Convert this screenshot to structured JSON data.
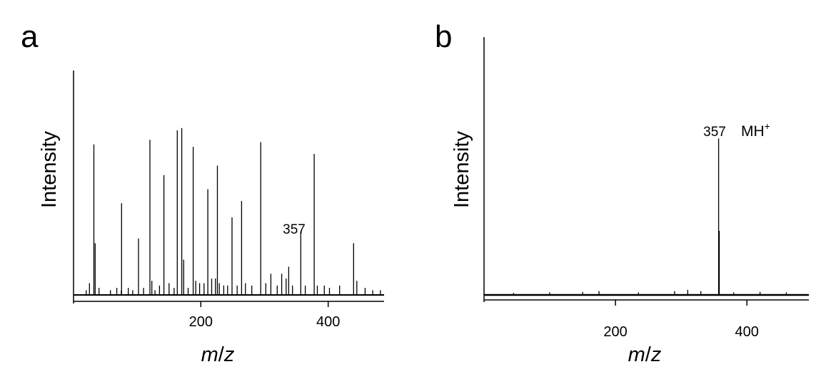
{
  "chart_data": [
    {
      "type": "bar",
      "panel_label": "a",
      "ylabel": "Intensity",
      "xlabel_italic_1": "m",
      "xlabel_sep": "/",
      "xlabel_italic_2": "z",
      "xlim": [
        0,
        500
      ],
      "ylim": [
        0,
        1
      ],
      "xticks": [
        200,
        400
      ],
      "xtick_labels": [
        "200",
        "400"
      ],
      "grid": false,
      "annotations": [
        {
          "x": 357,
          "text": "357"
        }
      ],
      "peaks": [
        [
          20,
          0.02
        ],
        [
          25,
          0.05
        ],
        [
          32,
          0.64
        ],
        [
          34,
          0.22
        ],
        [
          40,
          0.03
        ],
        [
          58,
          0.02
        ],
        [
          68,
          0.03
        ],
        [
          75,
          0.02
        ],
        [
          75.5,
          0.39
        ],
        [
          86,
          0.03
        ],
        [
          93,
          0.02
        ],
        [
          102,
          0.24
        ],
        [
          110,
          0.03
        ],
        [
          120,
          0.66
        ],
        [
          123,
          0.06
        ],
        [
          128,
          0.02
        ],
        [
          135,
          0.04
        ],
        [
          142,
          0.51
        ],
        [
          150,
          0.05
        ],
        [
          158,
          0.03
        ],
        [
          163,
          0.7
        ],
        [
          170,
          0.71
        ],
        [
          173,
          0.15
        ],
        [
          180,
          0.03
        ],
        [
          188,
          0.63
        ],
        [
          192,
          0.06
        ],
        [
          198,
          0.05
        ],
        [
          205,
          0.05
        ],
        [
          211,
          0.45
        ],
        [
          217,
          0.07
        ],
        [
          223,
          0.07
        ],
        [
          226,
          0.55
        ],
        [
          229,
          0.05
        ],
        [
          236,
          0.04
        ],
        [
          242,
          0.04
        ],
        [
          249,
          0.33
        ],
        [
          257,
          0.04
        ],
        [
          264,
          0.4
        ],
        [
          270,
          0.05
        ],
        [
          280,
          0.04
        ],
        [
          294,
          0.65
        ],
        [
          302,
          0.05
        ],
        [
          310,
          0.09
        ],
        [
          320,
          0.04
        ],
        [
          327,
          0.09
        ],
        [
          334,
          0.07
        ],
        [
          338,
          0.12
        ],
        [
          344,
          0.04
        ],
        [
          357,
          0.27
        ],
        [
          364,
          0.04
        ],
        [
          378,
          0.6
        ],
        [
          383,
          0.04
        ],
        [
          394,
          0.04
        ],
        [
          402,
          0.03
        ],
        [
          418,
          0.04
        ],
        [
          440,
          0.22
        ],
        [
          445,
          0.06
        ],
        [
          458,
          0.03
        ],
        [
          470,
          0.02
        ],
        [
          482,
          0.02
        ]
      ]
    },
    {
      "type": "bar",
      "panel_label": "b",
      "ylabel": "Intensity",
      "xlabel_italic_1": "m",
      "xlabel_sep": "/",
      "xlabel_italic_2": "z",
      "xlim": [
        0,
        500
      ],
      "ylim": [
        0,
        1
      ],
      "xticks": [
        200,
        400
      ],
      "xtick_labels": [
        "200",
        "400"
      ],
      "grid": false,
      "annotations": [
        {
          "x": 357,
          "text": "357",
          "ion_base": "MH",
          "ion_sup": "+"
        }
      ],
      "peaks": [
        [
          45,
          0.008
        ],
        [
          100,
          0.01
        ],
        [
          150,
          0.012
        ],
        [
          175,
          0.015
        ],
        [
          235,
          0.01
        ],
        [
          290,
          0.015
        ],
        [
          310,
          0.02
        ],
        [
          330,
          0.015
        ],
        [
          357,
          0.61
        ],
        [
          358,
          0.25
        ],
        [
          380,
          0.01
        ],
        [
          420,
          0.012
        ],
        [
          460,
          0.01
        ]
      ]
    }
  ]
}
